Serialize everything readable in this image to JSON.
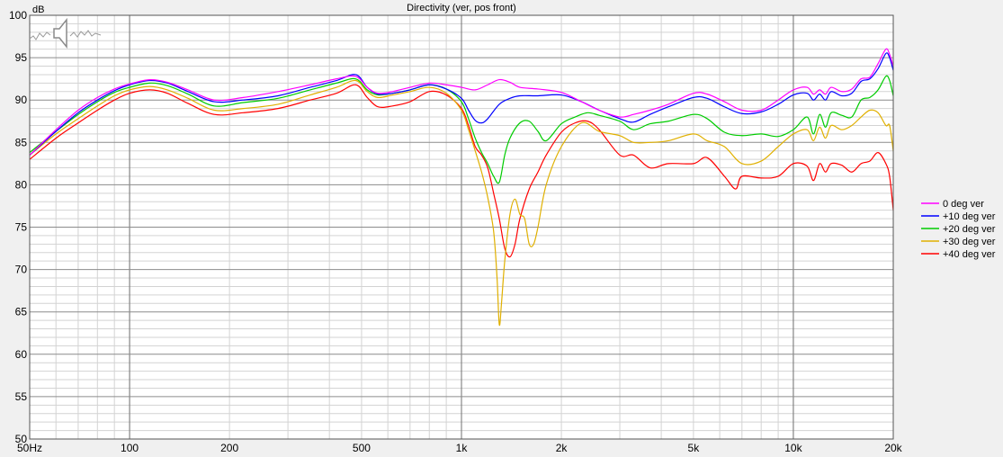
{
  "chart_data": {
    "type": "line",
    "title": "Directivity (ver, pos front)",
    "ylabel": "dB",
    "x_scale": "log",
    "xlim": [
      50,
      20000
    ],
    "ylim": [
      50,
      100
    ],
    "x_tick_labels": [
      {
        "value": 50,
        "label": "50Hz"
      },
      {
        "value": 100,
        "label": "100"
      },
      {
        "value": 200,
        "label": "200"
      },
      {
        "value": 500,
        "label": "500"
      },
      {
        "value": 1000,
        "label": "1k"
      },
      {
        "value": 2000,
        "label": "2k"
      },
      {
        "value": 5000,
        "label": "5k"
      },
      {
        "value": 10000,
        "label": "10k"
      },
      {
        "value": 20000,
        "label": "20k"
      }
    ],
    "y_ticks": [
      50,
      55,
      60,
      65,
      70,
      75,
      80,
      85,
      90,
      95,
      100
    ],
    "grid": true,
    "legend_position": "right",
    "series": [
      {
        "name": "0 deg ver",
        "color": "#ff00ff",
        "x": [
          50,
          60,
          70,
          80,
          90,
          100,
          115,
          130,
          150,
          180,
          220,
          280,
          350,
          420,
          480,
          520,
          560,
          620,
          700,
          800,
          900,
          1000,
          1100,
          1200,
          1300,
          1400,
          1500,
          1700,
          2000,
          2300,
          2600,
          3000,
          3300,
          3700,
          4200,
          5000,
          5500,
          6200,
          7000,
          8000,
          9000,
          10000,
          11000,
          11500,
          12000,
          12500,
          13000,
          14000,
          15000,
          16000,
          17000,
          18000,
          19000,
          19500,
          20000
        ],
        "y": [
          83.5,
          86.5,
          88.8,
          90.3,
          91.3,
          91.9,
          92.4,
          92.1,
          91.2,
          90,
          90.3,
          91,
          91.8,
          92.5,
          92.8,
          91.5,
          90.8,
          91,
          91.5,
          92,
          91.8,
          91.5,
          91.2,
          91.8,
          92.4,
          92.1,
          91.5,
          91.3,
          90.9,
          89.8,
          88.8,
          88,
          88.3,
          88.8,
          89.5,
          90.8,
          90.7,
          89.8,
          88.8,
          88.8,
          90,
          91.2,
          91.5,
          90.7,
          91.2,
          90.7,
          91.5,
          91,
          91.3,
          92.5,
          92.7,
          94.3,
          96,
          95.4,
          94
        ]
      },
      {
        "name": "+10 deg ver",
        "color": "#0000ff",
        "x": [
          50,
          60,
          70,
          80,
          90,
          100,
          115,
          130,
          150,
          180,
          220,
          280,
          350,
          420,
          480,
          520,
          560,
          620,
          700,
          800,
          900,
          1000,
          1050,
          1100,
          1150,
          1200,
          1300,
          1400,
          1500,
          1700,
          2000,
          2300,
          2600,
          3000,
          3300,
          3700,
          4200,
          5000,
          5500,
          6200,
          7000,
          8000,
          9000,
          10000,
          11000,
          11500,
          12000,
          12500,
          13000,
          14000,
          15000,
          16000,
          17000,
          18000,
          19000,
          19500,
          20000
        ],
        "y": [
          83.5,
          86.3,
          88.5,
          90,
          91.1,
          91.8,
          92.3,
          92,
          91,
          89.8,
          90,
          90.5,
          91.5,
          92.3,
          93,
          91.5,
          90.7,
          90.8,
          91.2,
          91.8,
          91.3,
          90.2,
          88.8,
          87.6,
          87.3,
          87.8,
          89.5,
          90.2,
          90.5,
          90.5,
          90.6,
          89.8,
          88.8,
          87.8,
          87.4,
          88.3,
          89.2,
          90.3,
          90.2,
          89.2,
          88.4,
          88.6,
          89.5,
          90.6,
          90.8,
          90,
          90.7,
          90,
          91,
          90.5,
          90.8,
          92.2,
          92.5,
          93.7,
          95.5,
          95,
          93.5
        ]
      },
      {
        "name": "+20 deg ver",
        "color": "#00cc00",
        "x": [
          50,
          60,
          70,
          80,
          90,
          100,
          115,
          130,
          150,
          180,
          220,
          280,
          350,
          420,
          480,
          520,
          560,
          620,
          700,
          800,
          900,
          1000,
          1050,
          1100,
          1150,
          1200,
          1250,
          1300,
          1350,
          1400,
          1500,
          1600,
          1700,
          1800,
          2000,
          2200,
          2400,
          2600,
          3000,
          3300,
          3700,
          4200,
          5000,
          5500,
          6200,
          7000,
          8000,
          9000,
          10000,
          11000,
          11500,
          12000,
          12500,
          13000,
          14000,
          15000,
          16000,
          17000,
          18000,
          19000,
          19500,
          20000
        ],
        "y": [
          83.8,
          86.3,
          88.3,
          89.8,
          90.9,
          91.5,
          92,
          91.7,
          90.7,
          89.3,
          89.7,
          90.2,
          91.2,
          92,
          92.5,
          91.2,
          90.6,
          90.8,
          91.2,
          91.8,
          91.3,
          89.8,
          87.8,
          85.5,
          83.8,
          82.5,
          81,
          80.3,
          83.5,
          85.5,
          87.3,
          87.5,
          86.3,
          85.2,
          87.2,
          88,
          88.5,
          88.2,
          87.5,
          86.5,
          87.2,
          87.5,
          88.3,
          87.8,
          86.2,
          85.8,
          86,
          85.7,
          86.5,
          88,
          86,
          88.3,
          86.8,
          88.5,
          88.2,
          88,
          90,
          90.3,
          91.2,
          92.8,
          92.3,
          90.5
        ]
      },
      {
        "name": "+30 deg ver",
        "color": "#e0b000",
        "x": [
          50,
          60,
          70,
          80,
          90,
          100,
          115,
          130,
          150,
          180,
          220,
          280,
          350,
          420,
          480,
          520,
          560,
          620,
          700,
          800,
          900,
          1000,
          1050,
          1100,
          1150,
          1200,
          1250,
          1280,
          1300,
          1320,
          1350,
          1400,
          1450,
          1500,
          1550,
          1600,
          1650,
          1700,
          1800,
          2000,
          2300,
          2600,
          3000,
          3300,
          3700,
          4200,
          5000,
          5500,
          6200,
          7000,
          8000,
          9000,
          10000,
          11000,
          11500,
          12000,
          12500,
          13000,
          14000,
          15000,
          16000,
          17000,
          18000,
          19000,
          19500,
          20000
        ],
        "y": [
          83.5,
          86,
          87.8,
          89.3,
          90.5,
          91.2,
          91.6,
          91.2,
          90.2,
          88.8,
          89,
          89.5,
          90.6,
          91.5,
          92.3,
          91,
          90.3,
          90.6,
          91,
          91.5,
          90.8,
          88.8,
          86.5,
          84,
          81.5,
          78.5,
          74.5,
          69,
          63.5,
          66,
          71,
          76.5,
          78.3,
          76.5,
          76,
          73,
          73,
          75,
          80,
          84.5,
          87.3,
          86.3,
          85.8,
          85,
          85,
          85.2,
          86,
          85.2,
          84.5,
          82.5,
          82.8,
          84.5,
          86,
          86.5,
          85.2,
          86.8,
          85.5,
          87,
          86.5,
          87,
          88,
          88.8,
          88.5,
          87,
          87,
          84
        ]
      },
      {
        "name": "+40 deg ver",
        "color": "#ff0000",
        "x": [
          50,
          60,
          70,
          80,
          90,
          100,
          115,
          130,
          150,
          180,
          220,
          280,
          350,
          420,
          480,
          520,
          560,
          620,
          700,
          800,
          900,
          1000,
          1050,
          1100,
          1150,
          1200,
          1250,
          1300,
          1350,
          1400,
          1450,
          1500,
          1600,
          1700,
          1800,
          2000,
          2200,
          2400,
          2600,
          3000,
          3300,
          3700,
          4200,
          5000,
          5500,
          6200,
          6700,
          7000,
          8000,
          9000,
          10000,
          11000,
          11500,
          12000,
          12500,
          13000,
          14000,
          15000,
          16000,
          17000,
          18000,
          19000,
          19500,
          20000
        ],
        "y": [
          83,
          85.5,
          87.3,
          88.8,
          90,
          90.8,
          91.2,
          90.8,
          89.6,
          88.3,
          88.5,
          89,
          90,
          90.8,
          91.8,
          90.3,
          89.2,
          89.3,
          89.8,
          91,
          90.6,
          89,
          87,
          84.5,
          83.5,
          82,
          79,
          76,
          72.5,
          71.5,
          73,
          76,
          79.5,
          81.5,
          83.5,
          86.2,
          87.3,
          87.5,
          86.5,
          83.5,
          83.5,
          82,
          82.5,
          82.5,
          83.2,
          81,
          79.5,
          81,
          80.8,
          81,
          82.5,
          82.2,
          80.5,
          82.5,
          81.5,
          82.5,
          82.3,
          81.5,
          82.5,
          82.8,
          83.8,
          82.5,
          81,
          77
        ]
      }
    ]
  }
}
